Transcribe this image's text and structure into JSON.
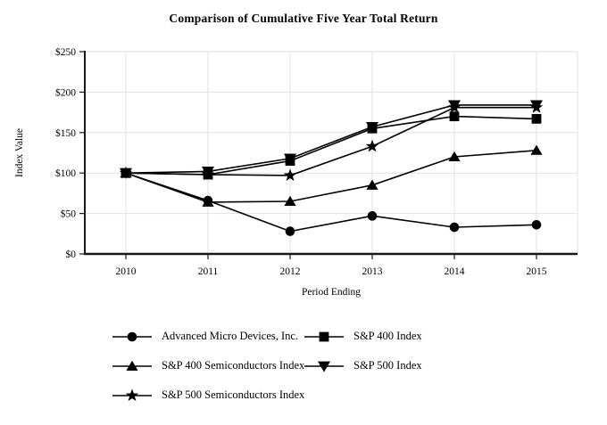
{
  "chart_data": {
    "type": "line",
    "title": "Comparison of Cumulative Five Year Total Return",
    "xlabel": "Period Ending",
    "ylabel": "Index Value",
    "categories": [
      "2010",
      "2011",
      "2012",
      "2013",
      "2014",
      "2015"
    ],
    "ylim": [
      0,
      250
    ],
    "y_tick_values": [
      0,
      50,
      100,
      150,
      200,
      250
    ],
    "y_tick_labels": [
      "$0",
      "$50",
      "$100",
      "$150",
      "$200",
      "$250"
    ],
    "grid": "on",
    "legend_position": "bottom-left, two columns",
    "series": [
      {
        "name": "Advanced Micro Devices, Inc.",
        "marker": "circle",
        "color": "#000000",
        "values": [
          100,
          66,
          28,
          47,
          33,
          36
        ]
      },
      {
        "name": "S&P 400 Index",
        "marker": "square",
        "color": "#000000",
        "values": [
          100,
          98,
          115,
          155,
          170,
          167
        ]
      },
      {
        "name": "S&P 400 Semiconductors Index",
        "marker": "triangle-up",
        "color": "#000000",
        "values": [
          100,
          64,
          65,
          85,
          120,
          128
        ]
      },
      {
        "name": "S&P 500 Index",
        "marker": "triangle-down",
        "color": "#000000",
        "values": [
          100,
          102,
          118,
          157,
          184,
          184
        ]
      },
      {
        "name": "S&P 500 Semiconductors Index",
        "marker": "star",
        "color": "#000000",
        "values": [
          100,
          98,
          97,
          133,
          181,
          181
        ]
      }
    ]
  },
  "colors": {
    "background": "#ffffff",
    "line": "#000000",
    "grid": "#e2e2e2",
    "axis": "#1a1a1a",
    "text": "#000000"
  }
}
